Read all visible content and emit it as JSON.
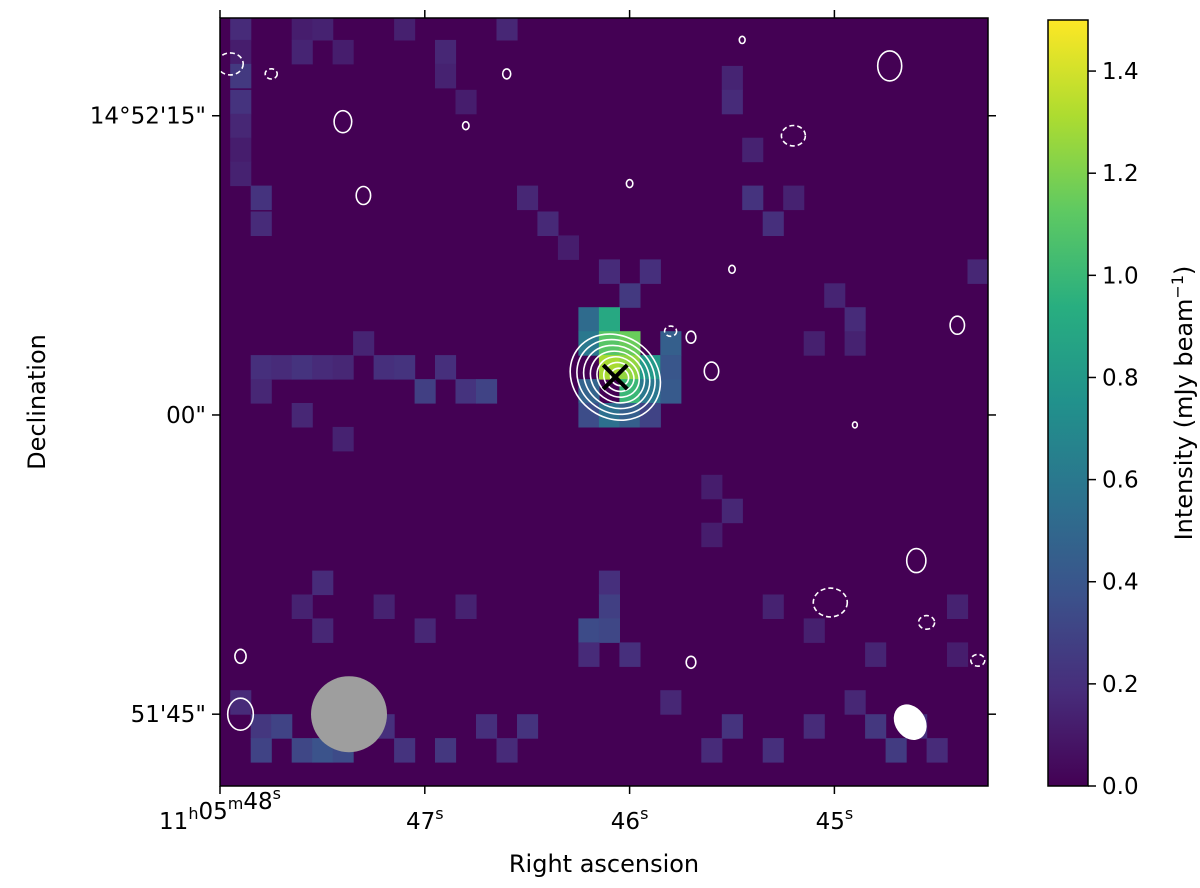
{
  "chart_data": {
    "type": "heatmap",
    "title": "",
    "xlabel": "Right ascension",
    "ylabel": "Declination",
    "x_ticks": [
      {
        "ra_sec": 48,
        "main": "11",
        "sup1": "h",
        "mid": "05",
        "sup2": "m",
        "end": "48",
        "sup3": "s"
      },
      {
        "ra_sec": 47,
        "main": "47",
        "sup3": "s"
      },
      {
        "ra_sec": 46,
        "main": "46",
        "sup3": "s"
      },
      {
        "ra_sec": 45,
        "main": "45",
        "sup3": "s"
      }
    ],
    "y_ticks": [
      {
        "dec_arcsec": 15,
        "label": "14°52'15\""
      },
      {
        "dec_arcsec": 0,
        "label": "00\""
      },
      {
        "dec_arcsec": -15,
        "label": "51'45\""
      }
    ],
    "ra_range_s": [
      48.0,
      44.25
    ],
    "dec_range_arcsec_rel_14d52m00s": [
      -18.6,
      19.9
    ],
    "colorbar": {
      "label": "Intensity (mJy beam",
      "label_exp": "−1",
      "label_close": ")",
      "colormap": "viridis",
      "range": [
        0.0,
        1.5
      ],
      "ticks": [
        {
          "value": 0.0,
          "label": "0.0"
        },
        {
          "value": 0.2,
          "label": "0.2"
        },
        {
          "value": 0.4,
          "label": "0.4"
        },
        {
          "value": 0.6,
          "label": "0.6"
        },
        {
          "value": 0.8,
          "label": "0.8"
        },
        {
          "value": 1.0,
          "label": "1.0"
        },
        {
          "value": 1.2,
          "label": "1.2"
        },
        {
          "value": 1.4,
          "label": "1.4"
        }
      ]
    },
    "source": {
      "ra_s": 46.07,
      "dec_arcsec": 1.9,
      "peak_mJy": 1.3,
      "marker": "cross"
    },
    "background_colour": "#440154",
    "contour_colour": "#ffffff",
    "beams": [
      {
        "name": "image beam",
        "colour": "#9e9e9e",
        "ra_s": 47.37,
        "dec_arcsec": -15.0
      },
      {
        "name": "contour beam",
        "colour": "#ffffff",
        "ra_s": 44.63,
        "dec_arcsec": -15.4
      }
    ],
    "pixels": [
      {
        "ra_s": 47.9,
        "dec": 19.4,
        "v": 0.18
      },
      {
        "ra_s": 47.9,
        "dec": 18.2,
        "v": 0.12
      },
      {
        "ra_s": 47.9,
        "dec": 17.0,
        "v": 0.25
      },
      {
        "ra_s": 47.9,
        "dec": 15.7,
        "v": 0.22
      },
      {
        "ra_s": 47.9,
        "dec": 14.5,
        "v": 0.16
      },
      {
        "ra_s": 47.9,
        "dec": 13.3,
        "v": 0.12
      },
      {
        "ra_s": 47.9,
        "dec": 12.1,
        "v": 0.14
      },
      {
        "ra_s": 47.8,
        "dec": 10.9,
        "v": 0.22
      },
      {
        "ra_s": 47.8,
        "dec": 9.6,
        "v": 0.18
      },
      {
        "ra_s": 47.6,
        "dec": 19.4,
        "v": 0.12
      },
      {
        "ra_s": 47.6,
        "dec": 18.2,
        "v": 0.15
      },
      {
        "ra_s": 47.5,
        "dec": 19.4,
        "v": 0.14
      },
      {
        "ra_s": 47.4,
        "dec": 18.2,
        "v": 0.12
      },
      {
        "ra_s": 47.1,
        "dec": 19.4,
        "v": 0.13
      },
      {
        "ra_s": 46.9,
        "dec": 18.2,
        "v": 0.16
      },
      {
        "ra_s": 46.9,
        "dec": 17.0,
        "v": 0.14
      },
      {
        "ra_s": 46.8,
        "dec": 15.7,
        "v": 0.12
      },
      {
        "ra_s": 46.6,
        "dec": 19.4,
        "v": 0.16
      },
      {
        "ra_s": 46.5,
        "dec": 10.9,
        "v": 0.16
      },
      {
        "ra_s": 46.4,
        "dec": 9.6,
        "v": 0.17
      },
      {
        "ra_s": 46.3,
        "dec": 8.4,
        "v": 0.12
      },
      {
        "ra_s": 46.1,
        "dec": 7.2,
        "v": 0.18
      },
      {
        "ra_s": 46.0,
        "dec": 6.0,
        "v": 0.25
      },
      {
        "ra_s": 45.9,
        "dec": 7.2,
        "v": 0.2
      },
      {
        "ra_s": 46.2,
        "dec": 4.8,
        "v": 0.52
      },
      {
        "ra_s": 46.2,
        "dec": 3.6,
        "v": 0.6
      },
      {
        "ra_s": 46.1,
        "dec": 4.8,
        "v": 0.9
      },
      {
        "ra_s": 46.1,
        "dec": 3.6,
        "v": 1.1
      },
      {
        "ra_s": 46.1,
        "dec": 2.4,
        "v": 1.3
      },
      {
        "ra_s": 46.0,
        "dec": 3.6,
        "v": 1.15
      },
      {
        "ra_s": 46.0,
        "dec": 2.4,
        "v": 1.25
      },
      {
        "ra_s": 46.0,
        "dec": 1.2,
        "v": 1.0
      },
      {
        "ra_s": 45.9,
        "dec": 2.4,
        "v": 0.8
      },
      {
        "ra_s": 45.9,
        "dec": 1.2,
        "v": 0.6
      },
      {
        "ra_s": 45.8,
        "dec": 3.6,
        "v": 0.45
      },
      {
        "ra_s": 45.8,
        "dec": 1.2,
        "v": 0.42
      },
      {
        "ra_s": 46.2,
        "dec": 1.2,
        "v": 0.48
      },
      {
        "ra_s": 46.2,
        "dec": 0.0,
        "v": 0.35
      },
      {
        "ra_s": 46.1,
        "dec": 0.0,
        "v": 0.55
      },
      {
        "ra_s": 46.0,
        "dec": 0.0,
        "v": 0.45
      },
      {
        "ra_s": 45.9,
        "dec": 0.0,
        "v": 0.3
      },
      {
        "ra_s": 45.8,
        "dec": 2.4,
        "v": 0.4
      },
      {
        "ra_s": 47.8,
        "dec": 2.4,
        "v": 0.2
      },
      {
        "ra_s": 47.7,
        "dec": 2.4,
        "v": 0.18
      },
      {
        "ra_s": 47.6,
        "dec": 2.4,
        "v": 0.22
      },
      {
        "ra_s": 47.5,
        "dec": 2.4,
        "v": 0.18
      },
      {
        "ra_s": 47.4,
        "dec": 2.4,
        "v": 0.16
      },
      {
        "ra_s": 47.3,
        "dec": 3.6,
        "v": 0.15
      },
      {
        "ra_s": 47.2,
        "dec": 2.4,
        "v": 0.2
      },
      {
        "ra_s": 47.1,
        "dec": 2.4,
        "v": 0.22
      },
      {
        "ra_s": 47.0,
        "dec": 1.2,
        "v": 0.28
      },
      {
        "ra_s": 46.9,
        "dec": 2.4,
        "v": 0.2
      },
      {
        "ra_s": 46.8,
        "dec": 1.2,
        "v": 0.22
      },
      {
        "ra_s": 46.7,
        "dec": 1.2,
        "v": 0.3
      },
      {
        "ra_s": 47.8,
        "dec": 1.2,
        "v": 0.16
      },
      {
        "ra_s": 47.6,
        "dec": 0.0,
        "v": 0.16
      },
      {
        "ra_s": 47.4,
        "dec": -1.2,
        "v": 0.14
      },
      {
        "ra_s": 45.5,
        "dec": 16.9,
        "v": 0.15
      },
      {
        "ra_s": 45.5,
        "dec": 15.7,
        "v": 0.18
      },
      {
        "ra_s": 45.4,
        "dec": 13.3,
        "v": 0.14
      },
      {
        "ra_s": 45.4,
        "dec": 10.9,
        "v": 0.22
      },
      {
        "ra_s": 45.3,
        "dec": 9.6,
        "v": 0.2
      },
      {
        "ra_s": 45.2,
        "dec": 10.9,
        "v": 0.14
      },
      {
        "ra_s": 45.0,
        "dec": 6.0,
        "v": 0.15
      },
      {
        "ra_s": 44.9,
        "dec": 4.8,
        "v": 0.18
      },
      {
        "ra_s": 44.9,
        "dec": 3.6,
        "v": 0.14
      },
      {
        "ra_s": 45.1,
        "dec": 3.6,
        "v": 0.13
      },
      {
        "ra_s": 44.3,
        "dec": 7.2,
        "v": 0.16
      },
      {
        "ra_s": 45.6,
        "dec": -3.6,
        "v": 0.12
      },
      {
        "ra_s": 45.5,
        "dec": -4.8,
        "v": 0.16
      },
      {
        "ra_s": 45.6,
        "dec": -6.0,
        "v": 0.12
      },
      {
        "ra_s": 47.6,
        "dec": -9.6,
        "v": 0.14
      },
      {
        "ra_s": 47.5,
        "dec": -8.4,
        "v": 0.18
      },
      {
        "ra_s": 47.5,
        "dec": -10.8,
        "v": 0.16
      },
      {
        "ra_s": 47.2,
        "dec": -9.6,
        "v": 0.14
      },
      {
        "ra_s": 47.0,
        "dec": -10.8,
        "v": 0.16
      },
      {
        "ra_s": 46.8,
        "dec": -9.6,
        "v": 0.14
      },
      {
        "ra_s": 46.1,
        "dec": -8.4,
        "v": 0.2
      },
      {
        "ra_s": 46.1,
        "dec": -9.6,
        "v": 0.28
      },
      {
        "ra_s": 46.2,
        "dec": -10.8,
        "v": 0.34
      },
      {
        "ra_s": 46.1,
        "dec": -10.8,
        "v": 0.32
      },
      {
        "ra_s": 46.0,
        "dec": -12.0,
        "v": 0.2
      },
      {
        "ra_s": 46.2,
        "dec": -12.0,
        "v": 0.18
      },
      {
        "ra_s": 45.3,
        "dec": -9.6,
        "v": 0.14
      },
      {
        "ra_s": 45.1,
        "dec": -10.8,
        "v": 0.13
      },
      {
        "ra_s": 44.8,
        "dec": -12.0,
        "v": 0.15
      },
      {
        "ra_s": 44.4,
        "dec": -9.6,
        "v": 0.14
      },
      {
        "ra_s": 44.4,
        "dec": -12.0,
        "v": 0.12
      },
      {
        "ra_s": 47.9,
        "dec": -14.4,
        "v": 0.18
      },
      {
        "ra_s": 47.8,
        "dec": -15.6,
        "v": 0.24
      },
      {
        "ra_s": 47.8,
        "dec": -16.8,
        "v": 0.3
      },
      {
        "ra_s": 47.7,
        "dec": -15.6,
        "v": 0.3
      },
      {
        "ra_s": 47.6,
        "dec": -16.8,
        "v": 0.32
      },
      {
        "ra_s": 47.5,
        "dec": -16.8,
        "v": 0.38
      },
      {
        "ra_s": 47.4,
        "dec": -16.8,
        "v": 0.34
      },
      {
        "ra_s": 47.2,
        "dec": -15.6,
        "v": 0.2
      },
      {
        "ra_s": 47.1,
        "dec": -16.8,
        "v": 0.22
      },
      {
        "ra_s": 46.9,
        "dec": -16.8,
        "v": 0.24
      },
      {
        "ra_s": 46.7,
        "dec": -15.6,
        "v": 0.2
      },
      {
        "ra_s": 46.5,
        "dec": -15.6,
        "v": 0.22
      },
      {
        "ra_s": 46.6,
        "dec": -16.8,
        "v": 0.18
      },
      {
        "ra_s": 45.8,
        "dec": -14.4,
        "v": 0.16
      },
      {
        "ra_s": 45.6,
        "dec": -16.8,
        "v": 0.18
      },
      {
        "ra_s": 45.5,
        "dec": -15.6,
        "v": 0.22
      },
      {
        "ra_s": 45.3,
        "dec": -16.8,
        "v": 0.2
      },
      {
        "ra_s": 45.1,
        "dec": -15.6,
        "v": 0.18
      },
      {
        "ra_s": 44.9,
        "dec": -14.4,
        "v": 0.16
      },
      {
        "ra_s": 44.8,
        "dec": -15.6,
        "v": 0.24
      },
      {
        "ra_s": 44.7,
        "dec": -16.8,
        "v": 0.26
      },
      {
        "ra_s": 44.6,
        "dec": -15.6,
        "v": 0.2
      },
      {
        "ra_s": 44.5,
        "dec": -16.8,
        "v": 0.18
      }
    ],
    "contours": {
      "positive_levels_mJy": [
        0.15,
        0.3,
        0.45,
        0.6,
        0.75,
        0.9,
        1.05
      ],
      "negative_levels_mJy": [
        -0.15
      ],
      "positive_blobs": [
        {
          "ra_s": 47.9,
          "dec": -15.0,
          "r": 0.8
        },
        {
          "ra_s": 47.4,
          "dec": 14.7,
          "r": 0.55
        },
        {
          "ra_s": 47.3,
          "dec": 11.0,
          "r": 0.45
        },
        {
          "ra_s": 46.8,
          "dec": 14.5,
          "r": 0.2
        },
        {
          "ra_s": 46.6,
          "dec": 17.1,
          "r": 0.25
        },
        {
          "ra_s": 46.0,
          "dec": 11.6,
          "r": 0.2
        },
        {
          "ra_s": 45.7,
          "dec": 3.9,
          "r": 0.3
        },
        {
          "ra_s": 45.6,
          "dec": 2.2,
          "r": 0.45
        },
        {
          "ra_s": 45.5,
          "dec": 7.3,
          "r": 0.2
        },
        {
          "ra_s": 45.45,
          "dec": 18.8,
          "r": 0.18
        },
        {
          "ra_s": 44.73,
          "dec": 17.5,
          "r": 0.75
        },
        {
          "ra_s": 44.4,
          "dec": 4.5,
          "r": 0.45
        },
        {
          "ra_s": 44.6,
          "dec": -7.3,
          "r": 0.6
        },
        {
          "ra_s": 45.7,
          "dec": -12.4,
          "r": 0.3
        },
        {
          "ra_s": 47.9,
          "dec": -12.1,
          "r": 0.35
        },
        {
          "ra_s": 44.9,
          "dec": -0.5,
          "r": 0.15
        }
      ],
      "negative_blobs": [
        {
          "ra_s": 47.95,
          "dec": 17.6,
          "r": 0.65
        },
        {
          "ra_s": 47.75,
          "dec": 17.1,
          "r": 0.3
        },
        {
          "ra_s": 45.2,
          "dec": 14.0,
          "r": 0.6
        },
        {
          "ra_s": 45.8,
          "dec": 4.2,
          "r": 0.3
        },
        {
          "ra_s": 45.02,
          "dec": -9.4,
          "r": 0.85
        },
        {
          "ra_s": 44.55,
          "dec": -10.4,
          "r": 0.4
        },
        {
          "ra_s": 44.3,
          "dec": -12.3,
          "r": 0.35
        }
      ]
    }
  }
}
